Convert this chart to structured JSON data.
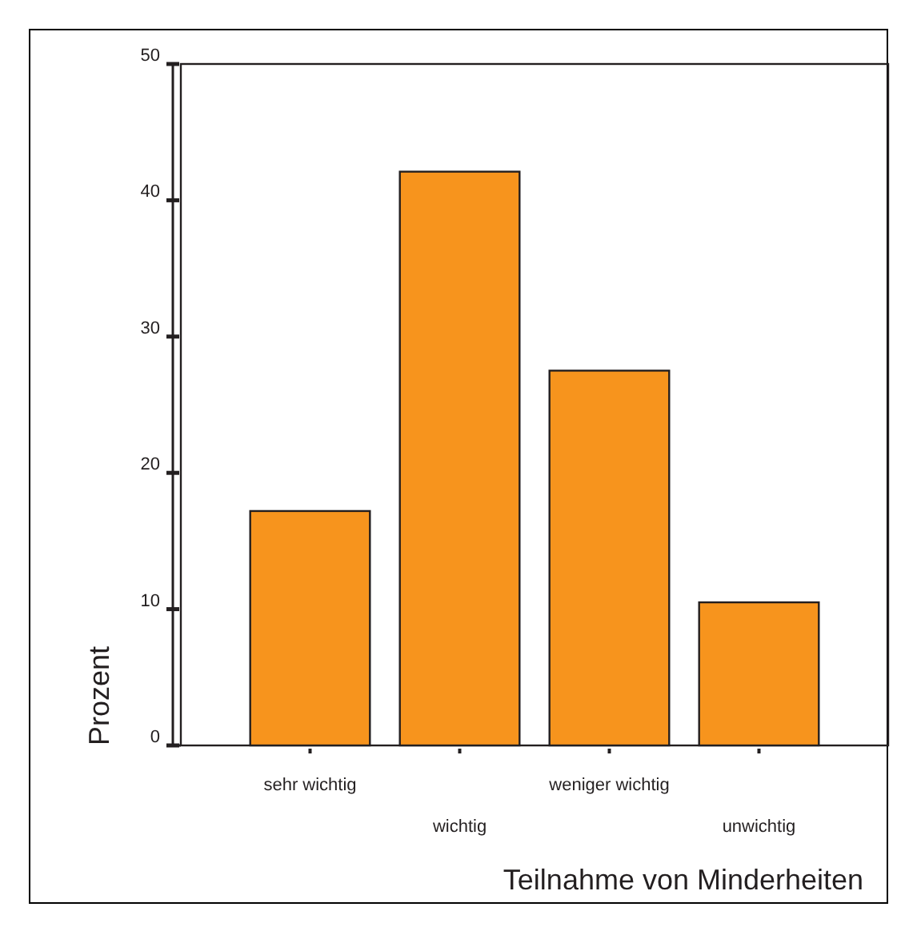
{
  "chart_data": {
    "type": "bar",
    "xlabel": "Teilnahme von Minderheiten",
    "ylabel": "Prozent",
    "categories": [
      "sehr wichtig",
      "wichtig",
      "weniger wichtig",
      "unwichtig"
    ],
    "values": [
      17.2,
      42.1,
      27.5,
      10.5
    ],
    "color": "#f7941d",
    "ylim": [
      0,
      50
    ],
    "yticks": [
      0,
      10,
      20,
      30,
      40,
      50
    ],
    "grid": false
  }
}
